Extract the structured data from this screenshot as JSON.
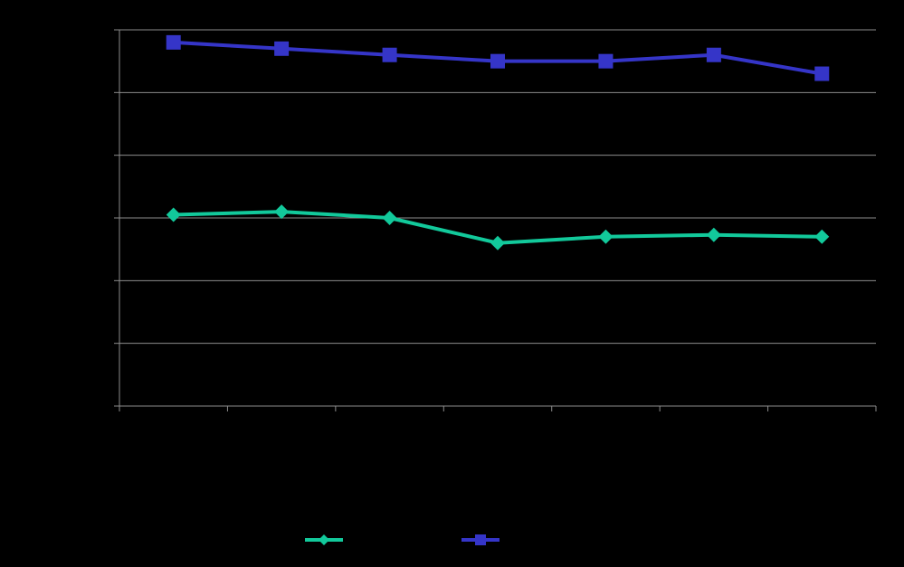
{
  "chart_data": {
    "type": "line",
    "x": [
      1,
      2,
      3,
      4,
      5,
      6,
      7
    ],
    "ylim": [
      0,
      6
    ],
    "y_gridlines": [
      0,
      1,
      2,
      3,
      4,
      5,
      6
    ],
    "grid": true,
    "legend": "bottom-center",
    "series": [
      {
        "values": [
          3.05,
          3.1,
          3.0,
          2.6,
          2.7,
          2.73,
          2.7
        ],
        "color": "#12c99b",
        "marker": "diamond"
      },
      {
        "values": [
          5.8,
          5.7,
          5.6,
          5.5,
          5.5,
          5.6,
          5.3
        ],
        "color": "#3535c8",
        "marker": "square"
      }
    ]
  }
}
